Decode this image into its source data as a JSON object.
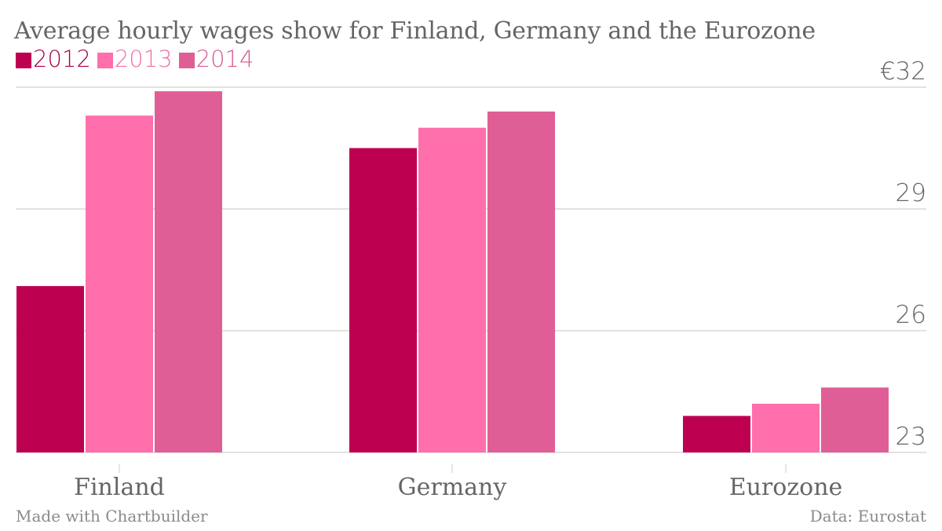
{
  "chart_data": {
    "type": "bar",
    "title": "Average hourly wages show for Finland, Germany and the Eurozone",
    "xlabel": "",
    "ylabel": "",
    "categories": [
      "Finland",
      "Germany",
      "Eurozone"
    ],
    "series": [
      {
        "name": "2012",
        "color": "#bd004f",
        "values": [
          27.1,
          30.5,
          23.9
        ]
      },
      {
        "name": "2013",
        "color": "#ff6fab",
        "values": [
          31.3,
          31.0,
          24.2
        ]
      },
      {
        "name": "2014",
        "color": "#e05e96",
        "values": [
          31.9,
          31.4,
          24.6
        ]
      }
    ],
    "ylim": [
      23,
      32
    ],
    "yticks": [
      23,
      26,
      29,
      32
    ],
    "ytick_labels": [
      "23",
      "26",
      "29",
      "€32"
    ],
    "y_axis_position": "right",
    "grid": true,
    "legend_position": "top-left"
  },
  "footer": {
    "credit": "Made with Chartbuilder",
    "source": "Data: Eurostat"
  },
  "colors": {
    "text": "#666666",
    "grid": "#e2e2e2"
  }
}
